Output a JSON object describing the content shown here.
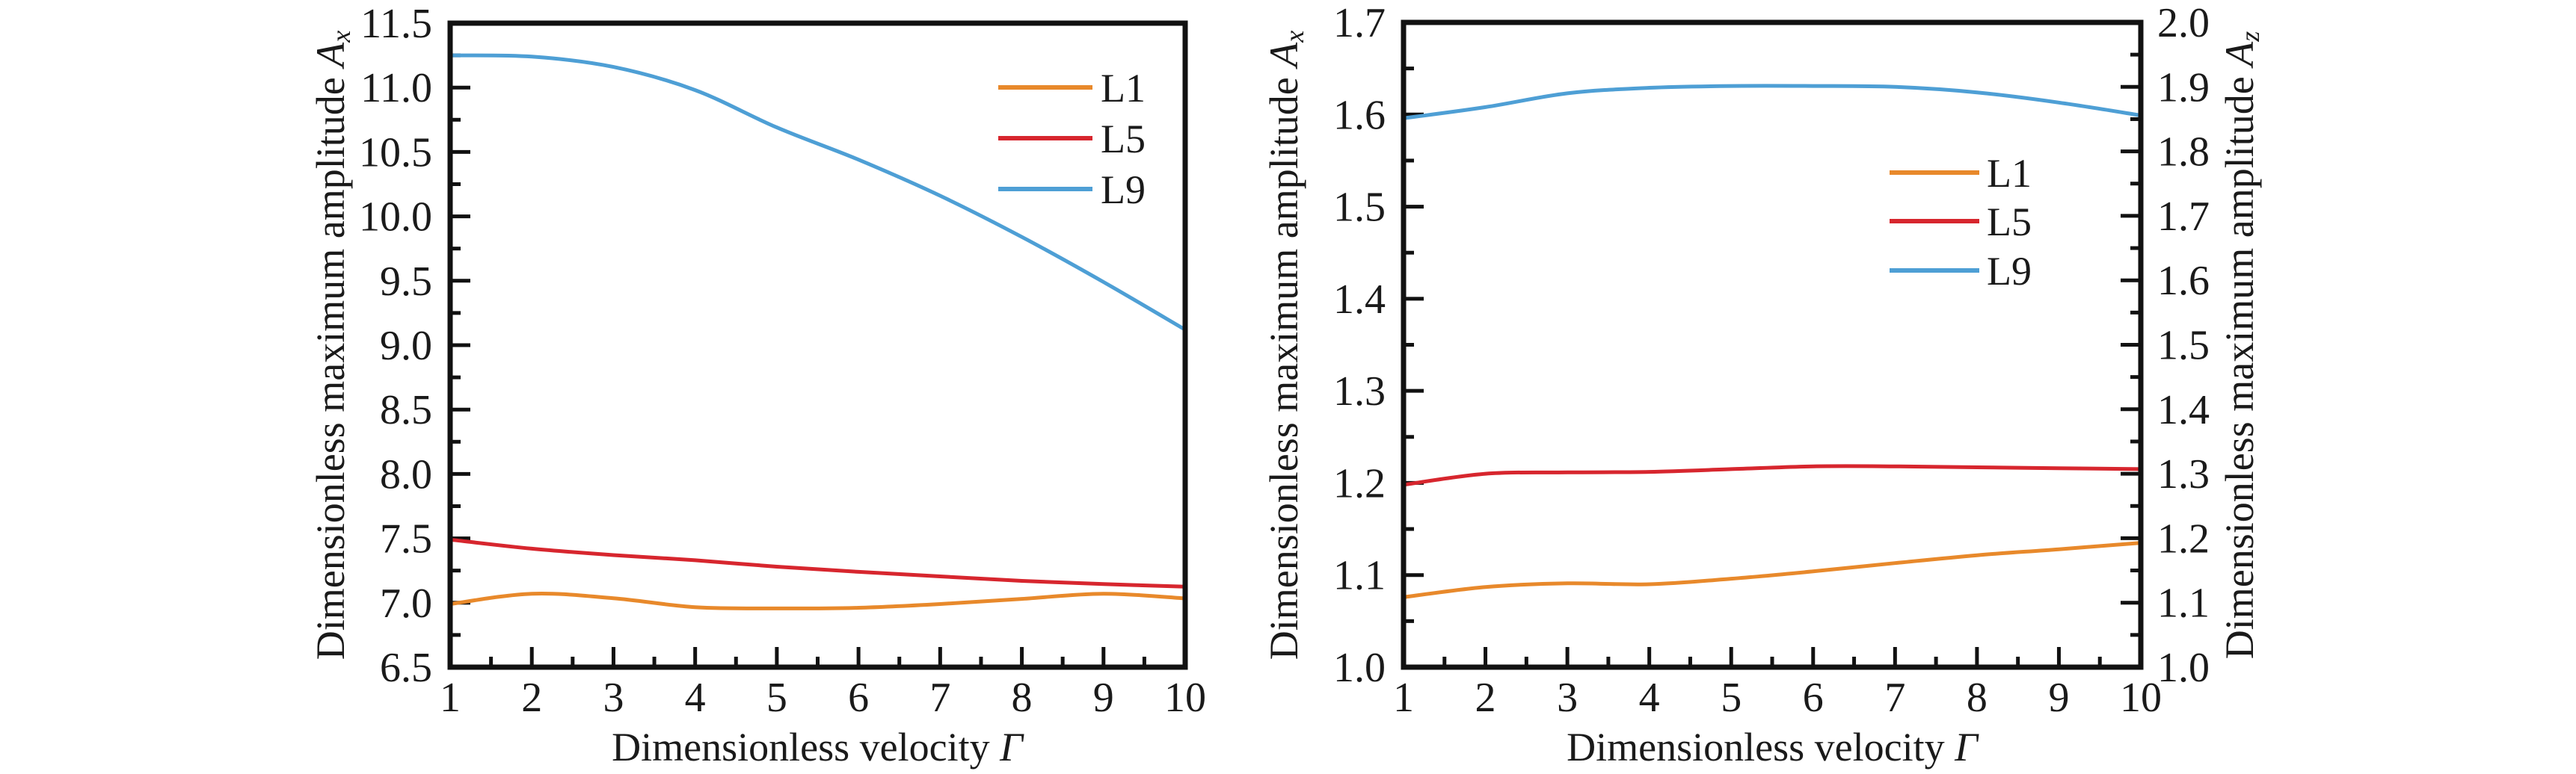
{
  "figure": {
    "panels": [
      "left",
      "right"
    ]
  },
  "chart_data": [
    {
      "type": "line",
      "id": "left",
      "title": "",
      "xlabel": "Dimensionless velocity Γ",
      "xlabel_main": "Dimensionless velocity ",
      "xlabel_symbol": "Γ",
      "ylabel": "Dimensionless maximum amplitude A_x",
      "ylabel_main": "Dimensionless maximum amplitude ",
      "ylabel_symbol": "A",
      "ylabel_sub": "x",
      "xlim": [
        1,
        10
      ],
      "ylim": [
        6.5,
        11.5
      ],
      "xticks": [
        1,
        2,
        3,
        4,
        5,
        6,
        7,
        8,
        9,
        10
      ],
      "xtick_labels": [
        "1",
        "2",
        "3",
        "4",
        "5",
        "6",
        "7",
        "8",
        "9",
        "10"
      ],
      "x_minor_step": 0.5,
      "yticks": [
        6.5,
        7.0,
        7.5,
        8.0,
        8.5,
        9.0,
        9.5,
        10.0,
        10.5,
        11.0,
        11.5
      ],
      "ytick_labels": [
        "6.5",
        "7.0",
        "7.5",
        "8.0",
        "8.5",
        "9.0",
        "9.5",
        "10.0",
        "10.5",
        "11.0",
        "11.5"
      ],
      "y_minor_step": 0.25,
      "grid": false,
      "legend": {
        "position": "top-right",
        "entries": [
          "L1",
          "L5",
          "L9"
        ]
      },
      "x": [
        1,
        2,
        3,
        4,
        5,
        6,
        7,
        8,
        9,
        10
      ],
      "series": [
        {
          "name": "L1",
          "color": "#E8892B",
          "values": [
            6.99,
            7.07,
            7.035,
            6.966,
            6.956,
            6.961,
            6.99,
            7.03,
            7.07,
            7.034
          ]
        },
        {
          "name": "L5",
          "color": "#D7262E",
          "values": [
            7.49,
            7.42,
            7.37,
            7.33,
            7.28,
            7.24,
            7.205,
            7.17,
            7.145,
            7.125
          ]
        },
        {
          "name": "L9",
          "color": "#4E9FD5",
          "values": [
            11.25,
            11.24,
            11.16,
            10.98,
            10.69,
            10.44,
            10.16,
            9.84,
            9.49,
            9.12
          ]
        }
      ]
    },
    {
      "type": "line",
      "id": "right",
      "title": "",
      "xlabel": "Dimensionless velocity Γ",
      "xlabel_main": "Dimensionless velocity ",
      "xlabel_symbol": "Γ",
      "ylabel": "Dimensionless maximum amplitude A_x",
      "ylabel_main": "Dimensionless maximum amplitude ",
      "ylabel_symbol": "A",
      "ylabel_sub": "x",
      "y2label": "Dimensionless maximum amplitude A_z",
      "y2label_main": "Dimensionless maximum amplitude ",
      "y2label_symbol": "A",
      "y2label_sub": "z",
      "xlim": [
        1,
        10
      ],
      "ylim": [
        1.0,
        1.7
      ],
      "y2lim": [
        1.0,
        2.0
      ],
      "xticks": [
        1,
        2,
        3,
        4,
        5,
        6,
        7,
        8,
        9,
        10
      ],
      "xtick_labels": [
        "1",
        "2",
        "3",
        "4",
        "5",
        "6",
        "7",
        "8",
        "9",
        "10"
      ],
      "x_minor_step": 0.5,
      "yticks": [
        1.0,
        1.1,
        1.2,
        1.3,
        1.4,
        1.5,
        1.6,
        1.7
      ],
      "ytick_labels": [
        "1.0",
        "1.1",
        "1.2",
        "1.3",
        "1.4",
        "1.5",
        "1.6",
        "1.7"
      ],
      "y_minor_step": 0.05,
      "y2ticks": [
        1.0,
        1.1,
        1.2,
        1.3,
        1.4,
        1.5,
        1.6,
        1.7,
        1.8,
        1.9,
        2.0
      ],
      "y2tick_labels": [
        "1.0",
        "1.1",
        "1.2",
        "1.3",
        "1.4",
        "1.5",
        "1.6",
        "1.7",
        "1.8",
        "1.9",
        "2.0"
      ],
      "y2_minor_step": 0.05,
      "grid": false,
      "legend": {
        "position": "center-right",
        "entries": [
          "L1",
          "L5",
          "L9"
        ]
      },
      "x": [
        1,
        2,
        3,
        4,
        5,
        6,
        7,
        8,
        9,
        10
      ],
      "series": [
        {
          "name": "L1",
          "color": "#E8892B",
          "values": [
            1.076,
            1.087,
            1.091,
            1.09,
            1.096,
            1.104,
            1.113,
            1.1215,
            1.128,
            1.135
          ]
        },
        {
          "name": "L5",
          "color": "#D7262E",
          "values": [
            1.198,
            1.21,
            1.2115,
            1.212,
            1.215,
            1.218,
            1.218,
            1.217,
            1.216,
            1.215
          ]
        },
        {
          "name": "L9",
          "color": "#4E9FD5",
          "values": [
            1.596,
            1.608,
            1.623,
            1.629,
            1.631,
            1.631,
            1.63,
            1.624,
            1.613,
            1.599
          ]
        }
      ]
    }
  ]
}
